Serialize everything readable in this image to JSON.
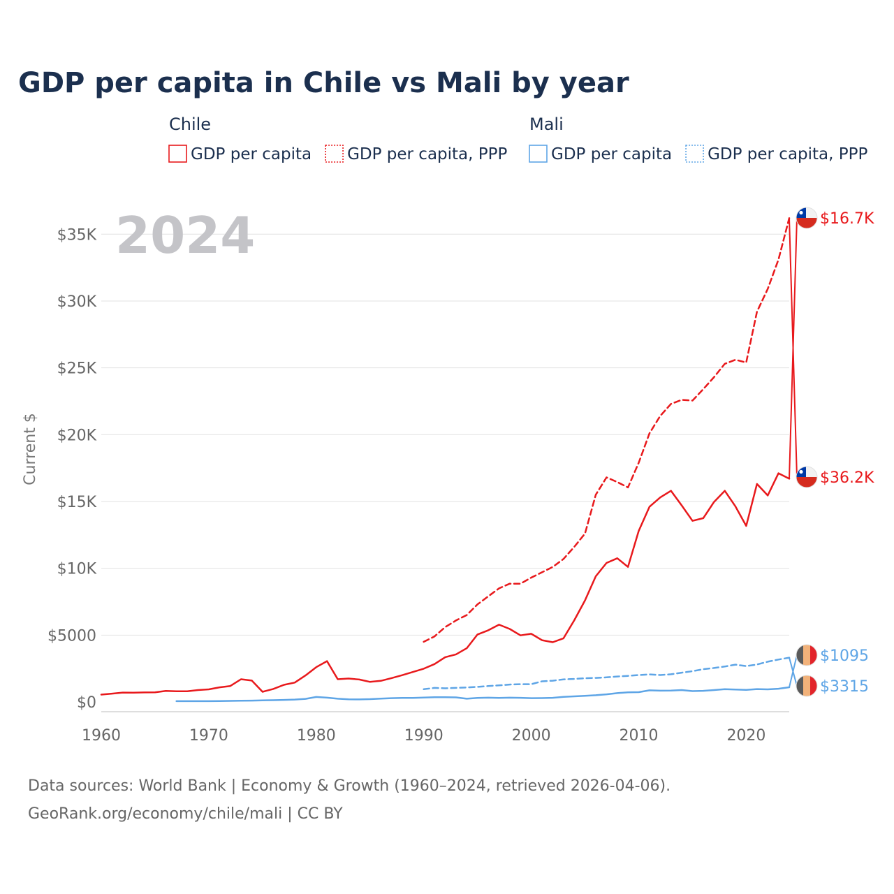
{
  "colors": {
    "chile": "#e8191c",
    "mali": "#5ea5e6",
    "title": "#1b2f4e",
    "tick": "#666666",
    "watermark": "#c4c4c8"
  },
  "chart_data": {
    "type": "line",
    "title": "GDP per capita in Chile vs Mali by year",
    "ylabel": "Current $",
    "xlabel": "",
    "xlim": [
      1960,
      2024
    ],
    "ylim": [
      0,
      37000
    ],
    "grid": true,
    "year_watermark": "2024",
    "x_ticks": [
      {
        "value": 1960,
        "label": "1960"
      },
      {
        "value": 1970,
        "label": "1970"
      },
      {
        "value": 1980,
        "label": "1980"
      },
      {
        "value": 1990,
        "label": "1990"
      },
      {
        "value": 2000,
        "label": "2000"
      },
      {
        "value": 2010,
        "label": "2010"
      },
      {
        "value": 2020,
        "label": "2020"
      }
    ],
    "y_ticks": [
      {
        "value": 0,
        "label": "$0"
      },
      {
        "value": 5000,
        "label": "$5000"
      },
      {
        "value": 10000,
        "label": "$10K"
      },
      {
        "value": 15000,
        "label": "$15K"
      },
      {
        "value": 20000,
        "label": "$20K"
      },
      {
        "value": 25000,
        "label": "$25K"
      },
      {
        "value": 30000,
        "label": "$30K"
      },
      {
        "value": 35000,
        "label": "$35K"
      }
    ],
    "legend": [
      {
        "group": "Chile",
        "items": [
          {
            "label": "GDP per capita",
            "style": "solid",
            "color": "#e8191c"
          },
          {
            "label": "GDP per capita, PPP",
            "style": "dotted",
            "color": "#e8191c"
          }
        ]
      },
      {
        "group": "Mali",
        "items": [
          {
            "label": "GDP per capita",
            "style": "solid",
            "color": "#5ea5e6"
          },
          {
            "label": "GDP per capita, PPP",
            "style": "dotted",
            "color": "#5ea5e6"
          }
        ]
      }
    ],
    "series": [
      {
        "name": "Chile GDP per capita",
        "country": "Chile",
        "color": "#e8191c",
        "dash": false,
        "end_label": "$16.7K",
        "flag": "chile",
        "x": [
          1960,
          1961,
          1962,
          1963,
          1964,
          1965,
          1966,
          1967,
          1968,
          1969,
          1970,
          1971,
          1972,
          1973,
          1974,
          1975,
          1976,
          1977,
          1978,
          1979,
          1980,
          1981,
          1982,
          1983,
          1984,
          1985,
          1986,
          1987,
          1988,
          1989,
          1990,
          1991,
          1992,
          1993,
          1994,
          1995,
          1996,
          1997,
          1998,
          1999,
          2000,
          2001,
          2002,
          2003,
          2004,
          2005,
          2006,
          2007,
          2008,
          2009,
          2010,
          2011,
          2012,
          2013,
          2014,
          2015,
          2016,
          2017,
          2018,
          2019,
          2020,
          2021,
          2022,
          2023,
          2024
        ],
        "values": [
          550,
          620,
          700,
          690,
          710,
          720,
          820,
          800,
          800,
          890,
          940,
          1090,
          1190,
          1700,
          1600,
          760,
          970,
          1280,
          1450,
          1980,
          2600,
          3050,
          1700,
          1750,
          1680,
          1500,
          1580,
          1780,
          2000,
          2240,
          2490,
          2830,
          3350,
          3560,
          4020,
          5050,
          5360,
          5780,
          5460,
          4980,
          5100,
          4620,
          4470,
          4760,
          6110,
          7600,
          9400,
          10400,
          10750,
          10100,
          12800,
          14600,
          15300,
          15800,
          14700,
          13550,
          13750,
          14960,
          15800,
          14630,
          13170,
          16310,
          15450,
          17110,
          16700
        ]
      },
      {
        "name": "Chile GDP per capita, PPP",
        "country": "Chile",
        "color": "#e8191c",
        "dash": true,
        "end_label": "$36.2K",
        "flag": "chile",
        "x": [
          1990,
          1991,
          1992,
          1993,
          1994,
          1995,
          1996,
          1997,
          1998,
          1999,
          2000,
          2001,
          2002,
          2003,
          2004,
          2005,
          2006,
          2007,
          2008,
          2009,
          2010,
          2011,
          2012,
          2013,
          2014,
          2015,
          2016,
          2017,
          2018,
          2019,
          2020,
          2021,
          2022,
          2023,
          2024
        ],
        "values": [
          4500,
          4900,
          5600,
          6100,
          6500,
          7300,
          7900,
          8500,
          8850,
          8850,
          9300,
          9700,
          10100,
          10700,
          11600,
          12600,
          15500,
          16800,
          16450,
          16050,
          17900,
          20100,
          21400,
          22300,
          22600,
          22550,
          23400,
          24300,
          25300,
          25600,
          25400,
          29200,
          30900,
          33100,
          36200
        ]
      },
      {
        "name": "Mali GDP per capita",
        "country": "Mali",
        "color": "#5ea5e6",
        "dash": false,
        "end_label": "$1095",
        "flag": "mali",
        "x": [
          1967,
          1968,
          1969,
          1970,
          1971,
          1972,
          1973,
          1974,
          1975,
          1976,
          1977,
          1978,
          1979,
          1980,
          1981,
          1982,
          1983,
          1984,
          1985,
          1986,
          1987,
          1988,
          1989,
          1990,
          1991,
          1992,
          1993,
          1994,
          1995,
          1996,
          1997,
          1998,
          1999,
          2000,
          2001,
          2002,
          2003,
          2004,
          2005,
          2006,
          2007,
          2008,
          2009,
          2010,
          2011,
          2012,
          2013,
          2014,
          2015,
          2016,
          2017,
          2018,
          2019,
          2020,
          2021,
          2022,
          2023,
          2024
        ],
        "values": [
          60,
          60,
          60,
          60,
          70,
          80,
          90,
          100,
          120,
          130,
          150,
          180,
          230,
          370,
          320,
          240,
          200,
          190,
          210,
          250,
          280,
          300,
          300,
          330,
          350,
          350,
          340,
          240,
          300,
          320,
          300,
          320,
          310,
          280,
          290,
          310,
          380,
          420,
          460,
          500,
          570,
          660,
          720,
          730,
          870,
          840,
          850,
          890,
          810,
          830,
          890,
          950,
          930,
          900,
          960,
          940,
          990,
          1095
        ]
      },
      {
        "name": "Mali GDP per capita, PPP",
        "country": "Mali",
        "color": "#5ea5e6",
        "dash": true,
        "end_label": "$3315",
        "flag": "mali",
        "x": [
          1990,
          1991,
          1992,
          1993,
          1994,
          1995,
          1996,
          1997,
          1998,
          1999,
          2000,
          2001,
          2002,
          2003,
          2004,
          2005,
          2006,
          2007,
          2008,
          2009,
          2010,
          2011,
          2012,
          2013,
          2014,
          2015,
          2016,
          2017,
          2018,
          2019,
          2020,
          2021,
          2022,
          2023,
          2024
        ],
        "values": [
          950,
          1050,
          1020,
          1050,
          1080,
          1130,
          1190,
          1240,
          1300,
          1330,
          1330,
          1540,
          1590,
          1690,
          1720,
          1770,
          1800,
          1840,
          1900,
          1950,
          2010,
          2060,
          2010,
          2070,
          2190,
          2300,
          2450,
          2540,
          2650,
          2790,
          2680,
          2800,
          3010,
          3170,
          3315
        ]
      }
    ]
  },
  "source": {
    "line1": "Data sources: World Bank | Economy & Growth (1960–2024, retrieved 2026-04-06).",
    "line2": "GeoRank.org/economy/chile/mali | CC BY"
  }
}
